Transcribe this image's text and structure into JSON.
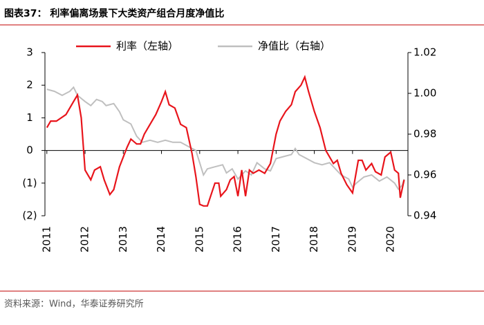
{
  "chart_data": {
    "type": "line",
    "title": "图表37：  利率偏离场景下大类资产组合月度净值比",
    "source": "资料来源：Wind，华泰证券研究所",
    "xlim": [
      2010.95,
      2020.45
    ],
    "xticks": [
      2011,
      2012,
      2013,
      2014,
      2015,
      2016,
      2017,
      2018,
      2019,
      2020
    ],
    "ylim": [
      -2,
      3
    ],
    "yticks": [
      {
        "value": -2,
        "label": "(2)"
      },
      {
        "value": -1,
        "label": "(1)"
      },
      0,
      1,
      2,
      3
    ],
    "y2lim": [
      0.94,
      1.02
    ],
    "y2ticks": [
      0.94,
      0.96,
      0.98,
      {
        "value": 1,
        "label": "1.00"
      },
      1.02
    ],
    "series": [
      {
        "name": "利率（左轴）",
        "color": "#e8141b",
        "axis": "y",
        "x": [
          2011.0,
          2011.1,
          2011.25,
          2011.5,
          2011.7,
          2011.8,
          2011.9,
          2012.0,
          2012.15,
          2012.25,
          2012.4,
          2012.5,
          2012.65,
          2012.75,
          2012.9,
          2013.1,
          2013.2,
          2013.35,
          2013.45,
          2013.55,
          2013.7,
          2013.85,
          2014.0,
          2014.1,
          2014.2,
          2014.35,
          2014.5,
          2014.65,
          2014.8,
          2014.9,
          2015.0,
          2015.1,
          2015.2,
          2015.3,
          2015.4,
          2015.5,
          2015.55,
          2015.7,
          2015.8,
          2015.9,
          2016.0,
          2016.1,
          2016.2,
          2016.3,
          2016.4,
          2016.55,
          2016.7,
          2016.85,
          2017.0,
          2017.1,
          2017.25,
          2017.4,
          2017.5,
          2017.65,
          2017.75,
          2017.85,
          2018.0,
          2018.15,
          2018.3,
          2018.5,
          2018.6,
          2018.7,
          2018.85,
          2019.0,
          2019.15,
          2019.25,
          2019.35,
          2019.5,
          2019.6,
          2019.75,
          2019.85,
          2020.0,
          2020.1,
          2020.2,
          2020.25,
          2020.35
        ],
        "values": [
          0.7,
          0.9,
          0.9,
          1.1,
          1.5,
          1.7,
          1.0,
          -0.6,
          -0.9,
          -0.6,
          -0.5,
          -0.9,
          -1.35,
          -1.2,
          -0.5,
          0.1,
          0.35,
          0.2,
          0.2,
          0.5,
          0.8,
          1.1,
          1.5,
          1.8,
          1.4,
          1.3,
          0.8,
          0.7,
          -0.1,
          -0.8,
          -1.65,
          -1.7,
          -1.7,
          -1.35,
          -1.0,
          -1.0,
          -1.4,
          -1.2,
          -0.9,
          -0.8,
          -1.4,
          -0.6,
          -1.4,
          -0.6,
          -0.7,
          -0.6,
          -0.7,
          -0.4,
          0.5,
          0.9,
          1.2,
          1.4,
          1.8,
          2.0,
          2.25,
          1.8,
          1.2,
          0.7,
          0.0,
          -0.4,
          -0.3,
          -0.7,
          -1.05,
          -1.3,
          -0.3,
          -0.3,
          -0.6,
          -0.4,
          -0.65,
          -0.75,
          -0.2,
          -0.05,
          -0.6,
          -0.7,
          -1.45,
          -0.9
        ]
      },
      {
        "name": "净值比（右轴）",
        "color": "#bfbfbf",
        "axis": "y2",
        "x": [
          2011.0,
          2011.2,
          2011.4,
          2011.6,
          2011.7,
          2011.8,
          2012.0,
          2012.15,
          2012.3,
          2012.45,
          2012.55,
          2012.75,
          2012.9,
          2013.0,
          2013.2,
          2013.35,
          2013.5,
          2013.7,
          2013.9,
          2014.1,
          2014.3,
          2014.5,
          2014.7,
          2014.9,
          2015.0,
          2015.1,
          2015.2,
          2015.4,
          2015.6,
          2015.7,
          2015.85,
          2016.0,
          2016.2,
          2016.35,
          2016.5,
          2016.7,
          2016.85,
          2017.0,
          2017.2,
          2017.4,
          2017.5,
          2017.6,
          2017.8,
          2018.0,
          2018.2,
          2018.4,
          2018.55,
          2018.7,
          2018.9,
          2019.0,
          2019.1,
          2019.3,
          2019.5,
          2019.7,
          2019.9,
          2020.1,
          2020.2,
          2020.3,
          2020.35
        ],
        "values": [
          1.002,
          1.001,
          0.999,
          1.001,
          1.003,
          0.999,
          0.996,
          0.994,
          0.997,
          0.996,
          0.994,
          0.995,
          0.991,
          0.987,
          0.985,
          0.979,
          0.976,
          0.977,
          0.976,
          0.977,
          0.976,
          0.976,
          0.974,
          0.972,
          0.966,
          0.96,
          0.963,
          0.964,
          0.965,
          0.961,
          0.963,
          0.958,
          0.962,
          0.96,
          0.966,
          0.963,
          0.962,
          0.968,
          0.969,
          0.97,
          0.973,
          0.97,
          0.968,
          0.966,
          0.965,
          0.966,
          0.963,
          0.96,
          0.958,
          0.954,
          0.956,
          0.959,
          0.96,
          0.957,
          0.959,
          0.956,
          0.953,
          0.955,
          0.958
        ]
      }
    ]
  }
}
